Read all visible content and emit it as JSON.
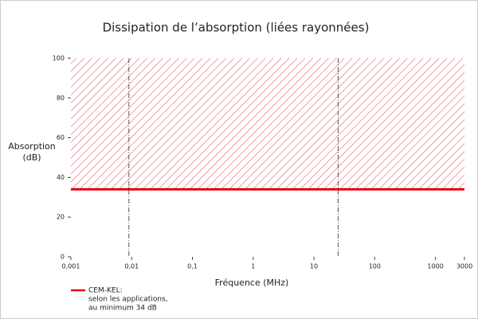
{
  "chart_data": {
    "type": "line",
    "title": "Dissipation de l’absorption (liées rayonnées)",
    "xlabel": "Fréquence (MHz)",
    "ylabel": [
      "Absorption",
      "(dB)"
    ],
    "log_x": true,
    "xlim": [
      0.001,
      3000
    ],
    "ylim": [
      0,
      100
    ],
    "xticks": [
      {
        "value": 0.001,
        "label": "0,001"
      },
      {
        "value": 0.01,
        "label": "0,01"
      },
      {
        "value": 0.1,
        "label": "0,1"
      },
      1,
      10,
      100,
      1000,
      3000
    ],
    "yticks": [
      0,
      20,
      40,
      60,
      80,
      100
    ],
    "series": [
      {
        "name": "CEM-KEL:",
        "color": "#e30613",
        "x": [
          0.001,
          3000
        ],
        "values": [
          34,
          34
        ]
      }
    ],
    "legend_note": [
      "selon les applications,",
      "au minimum 34 dB"
    ],
    "shaded_region": {
      "y": [
        34,
        100
      ],
      "color": "#e8505a"
    },
    "reference_lines_x": [
      0.009,
      25
    ]
  }
}
